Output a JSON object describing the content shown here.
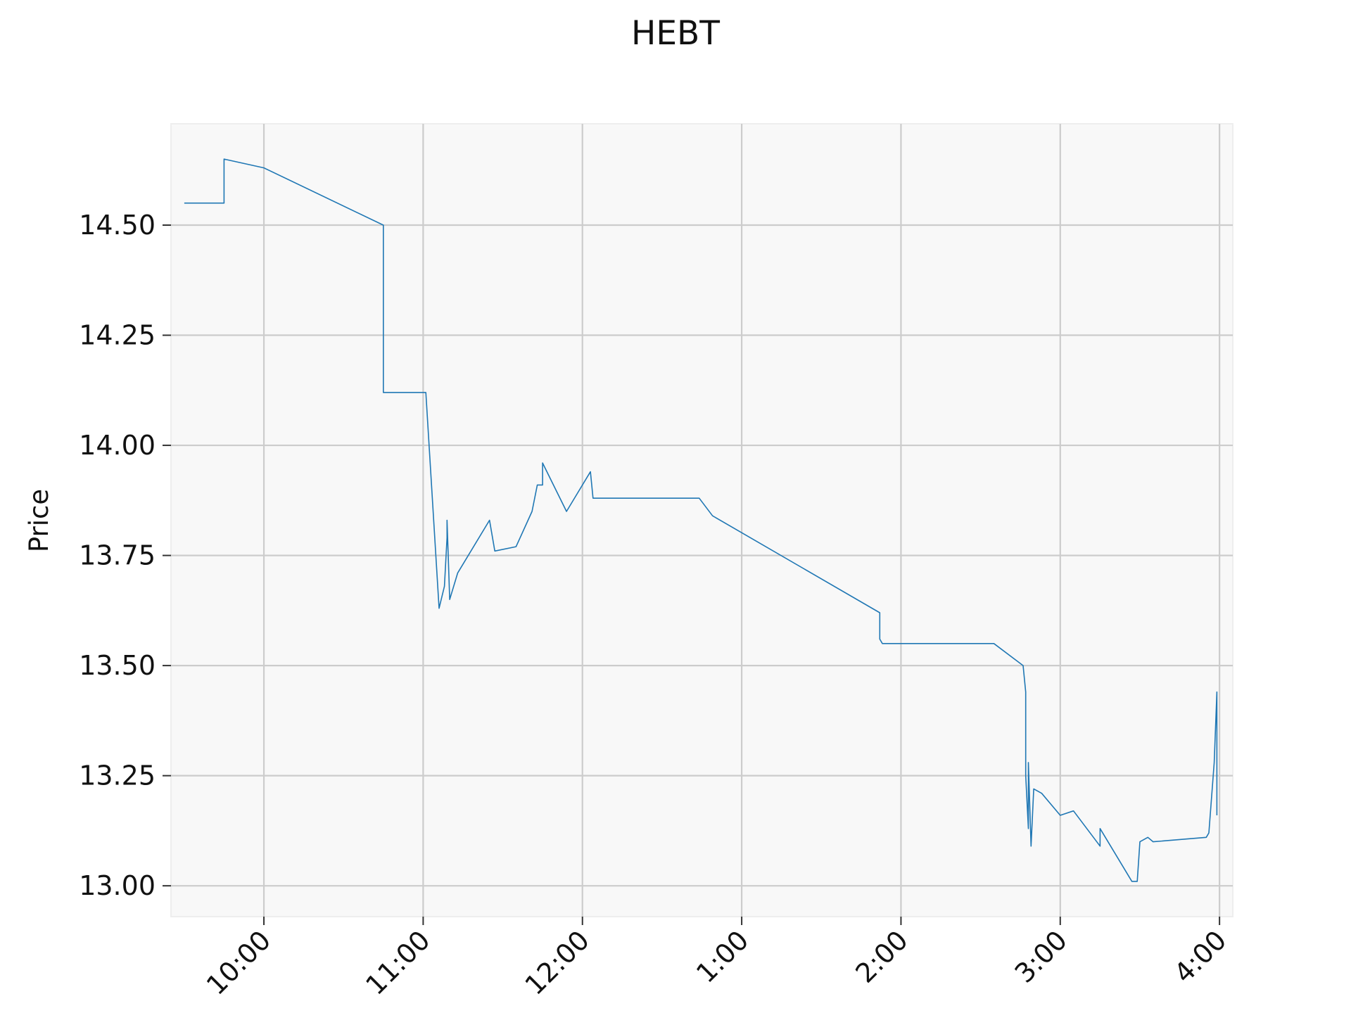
{
  "chart_data": {
    "type": "line",
    "title": "HEBT",
    "xlabel": "",
    "ylabel": "Price",
    "grid": true,
    "x_ticks": [
      "10:00",
      "11:00",
      "12:00",
      "1:00",
      "2:00",
      "3:00",
      "4:00"
    ],
    "x_tick_values": [
      "10:00",
      "11:00",
      "12:00",
      "13:00",
      "14:00",
      "15:00",
      "16:00"
    ],
    "y_ticks": [
      "13.00",
      "13.25",
      "13.50",
      "13.75",
      "14.00",
      "14.25",
      "14.50"
    ],
    "xlim": [
      "09:25",
      "16:05"
    ],
    "ylim": [
      12.93,
      14.73
    ],
    "colors": {
      "line": "#1f77b4",
      "plot_background": "#f8f8f8",
      "grid": "#cccccc"
    },
    "series": [
      {
        "x": [
          "09:30",
          "09:45",
          "09:45",
          "10:00",
          "10:45",
          "10:45",
          "11:01",
          "11:06",
          "11:08",
          "11:09",
          "11:09",
          "11:10",
          "11:13",
          "11:25",
          "11:27",
          "11:35",
          "11:41",
          "11:43",
          "11:45",
          "11:45",
          "11:54",
          "12:03",
          "12:04",
          "12:44",
          "12:49",
          "13:52",
          "13:52",
          "13:53",
          "14:35",
          "14:46",
          "14:47",
          "14:47",
          "14:48",
          "14:48",
          "14:49",
          "14:50",
          "14:53",
          "15:00",
          "15:05",
          "15:15",
          "15:15",
          "15:27",
          "15:29",
          "15:30",
          "15:33",
          "15:35",
          "15:55",
          "15:56",
          "15:58",
          "15:59",
          "15:59"
        ],
        "y": [
          14.55,
          14.55,
          14.65,
          14.63,
          14.5,
          14.12,
          14.12,
          13.63,
          13.68,
          13.79,
          13.83,
          13.65,
          13.71,
          13.83,
          13.76,
          13.77,
          13.85,
          13.91,
          13.91,
          13.96,
          13.85,
          13.94,
          13.88,
          13.88,
          13.84,
          13.62,
          13.56,
          13.55,
          13.55,
          13.5,
          13.44,
          13.25,
          13.13,
          13.28,
          13.09,
          13.22,
          13.21,
          13.16,
          13.17,
          13.09,
          13.13,
          13.01,
          13.01,
          13.1,
          13.11,
          13.1,
          13.11,
          13.12,
          13.28,
          13.44,
          13.16
        ]
      }
    ]
  }
}
